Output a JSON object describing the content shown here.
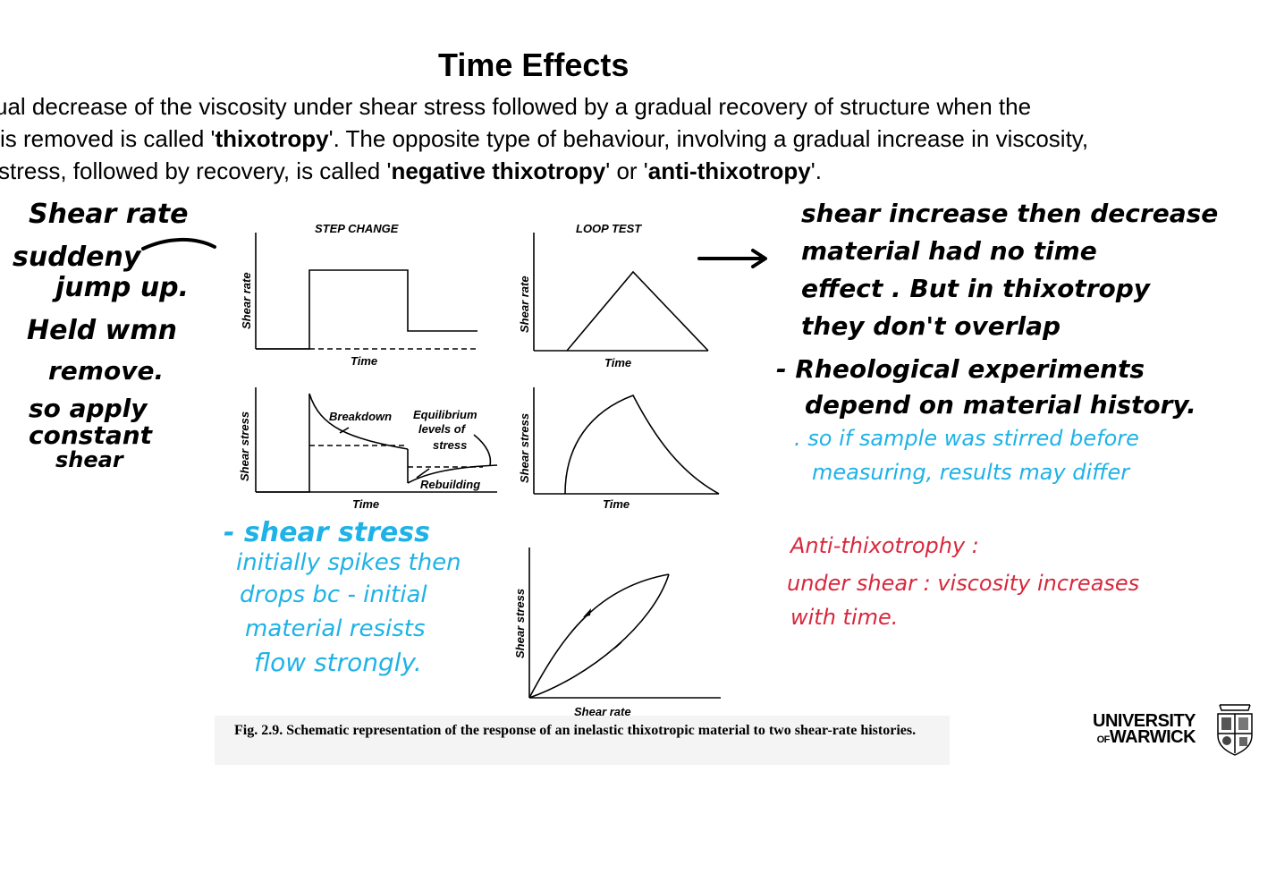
{
  "slide": {
    "title": "Time Effects",
    "paragraph": {
      "line1": "ual decrease of the viscosity under shear stress followed by a gradual recovery of structure when the",
      "line2_pre": "is removed is called '",
      "line2_term": "thixotropy",
      "line2_post": "'. The opposite type of behaviour, involving a gradual increase in viscosity,",
      "line3_pre": "stress, followed by recovery, is called '",
      "line3_term1": "negative thixotropy",
      "line3_mid": "' or '",
      "line3_term2": "anti-thixotropy",
      "line3_post": "'."
    }
  },
  "figure": {
    "step_change_heading": "STEP CHANGE",
    "loop_test_heading": "LOOP TEST",
    "shear_rate_label": "Shear rate",
    "shear_stress_label": "Shear stress",
    "time_label": "Time",
    "breakdown_label": "Breakdown",
    "equilibrium_label_1": "Equilibrium",
    "equilibrium_label_2": "levels of",
    "equilibrium_label_3": "stress",
    "rebuilding_label": "Rebuilding",
    "caption": "Fig. 2.9. Schematic representation of the response of an inelastic thixotropic material to two shear-rate histories."
  },
  "annotations": {
    "left_black": [
      "Shear rate",
      "suddeny",
      "jump up.",
      "Held wmn",
      "remove.",
      "so apply",
      "constant",
      "shear"
    ],
    "left_blue": [
      "- shear stress",
      "initially spikes then",
      "drops bc - initial",
      "material resists",
      "flow strongly."
    ],
    "right_black": [
      "shear increase then decrease",
      "material had no time",
      "effect . But in thixotropy",
      "they don't overlap",
      "- Rheological experiments",
      "depend on material history."
    ],
    "right_blue": [
      ". so if sample was stirred before",
      "measuring, results may differ"
    ],
    "right_red": [
      "Anti-thixotrophy :",
      "under shear : viscosity increases",
      "with time."
    ]
  },
  "logo": {
    "line1": "UNIVERSITY",
    "line2_of": "OF",
    "line2": "WARWICK"
  },
  "colors": {
    "annotation_blue": "#1fb2e6",
    "annotation_red": "#d8283c",
    "annotation_black": "#000000"
  }
}
